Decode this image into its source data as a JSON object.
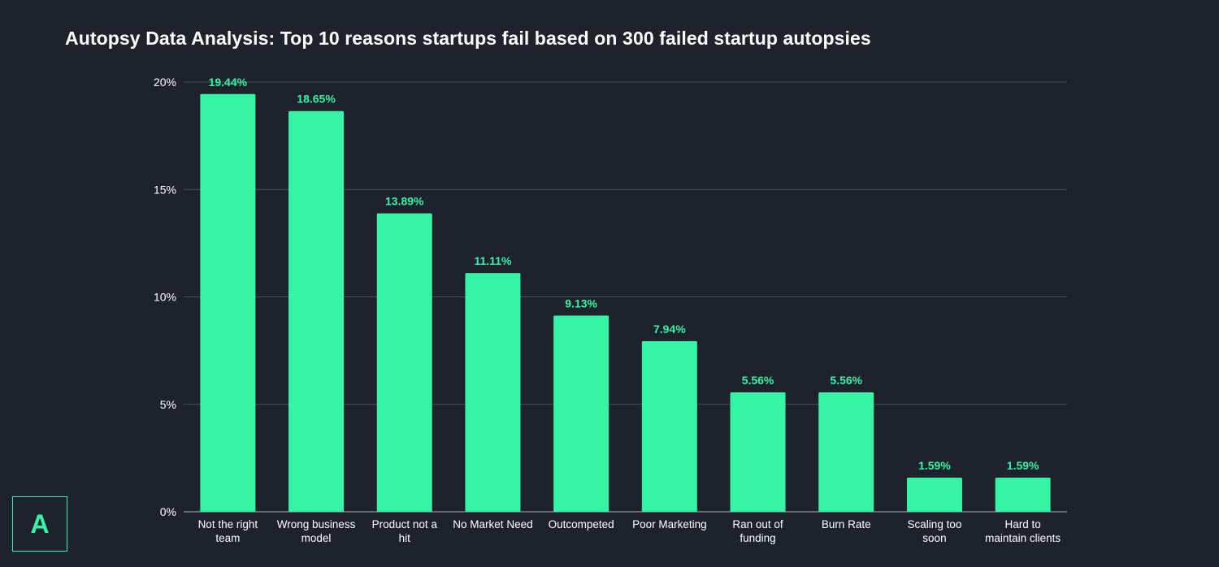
{
  "title": "Autopsy Data Analysis: Top 10 reasons startups fail based on 300 failed startup autopsies",
  "logo_letter": "A",
  "colors": {
    "background": "#1e222c",
    "bar": "#35f5a5",
    "value_label": "#35f5a5",
    "gridline": "#4a4f5b",
    "axis_text": "#ffffff"
  },
  "chart_data": {
    "type": "bar",
    "title": "Autopsy Data Analysis: Top 10 reasons startups fail based on 300 failed startup autopsies",
    "xlabel": "",
    "ylabel": "",
    "ylim": [
      0,
      20
    ],
    "grid": true,
    "y_ticks": [
      0,
      5,
      10,
      15,
      20
    ],
    "y_tick_labels": [
      "0%",
      "5%",
      "10%",
      "15%",
      "20%"
    ],
    "categories": [
      [
        "Not the right",
        "team"
      ],
      [
        "Wrong business",
        "model"
      ],
      [
        "Product not a",
        "hit"
      ],
      [
        "No Market Need"
      ],
      [
        "Outcompeted"
      ],
      [
        "Poor Marketing"
      ],
      [
        "Ran out of",
        "funding"
      ],
      [
        "Burn Rate"
      ],
      [
        "Scaling too",
        "soon"
      ],
      [
        "Hard to",
        "maintain clients"
      ]
    ],
    "values": [
      19.44,
      18.65,
      13.89,
      11.11,
      9.13,
      7.94,
      5.56,
      5.56,
      1.59,
      1.59
    ],
    "value_labels": [
      "19.44%",
      "18.65%",
      "13.89%",
      "11.11%",
      "9.13%",
      "7.94%",
      "5.56%",
      "5.56%",
      "1.59%",
      "1.59%"
    ]
  }
}
